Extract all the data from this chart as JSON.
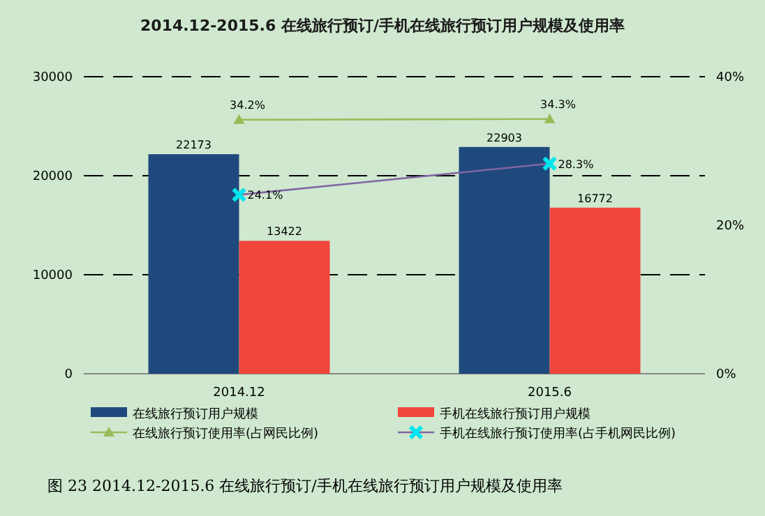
{
  "chart_data": {
    "type": "bar",
    "title": "2014.12-2015.6 在线旅行预订/手机在线旅行预订用户规模及使用率",
    "categories": [
      "2014.12",
      "2015.6"
    ],
    "series": [
      {
        "name": "在线旅行预订用户规模",
        "color": "#1f497d",
        "values": [
          22173,
          22903
        ],
        "value_labels": [
          "22173",
          "22903"
        ]
      },
      {
        "name": "手机在线旅行预订用户规模",
        "color": "#f0463c",
        "values": [
          13422,
          16772
        ],
        "value_labels": [
          "13422",
          "16772"
        ]
      },
      {
        "name": "在线旅行预订使用率(占网民比例)",
        "type": "line",
        "axis": "y2",
        "marker": "triangle",
        "color": "#9bbb59",
        "values": [
          34.2,
          34.3
        ],
        "value_labels": [
          "34.2%",
          "34.3%"
        ]
      },
      {
        "name": "手机在线旅行预订使用率(占手机网民比例)",
        "type": "line",
        "axis": "y2",
        "marker": "cross",
        "color": "#8064a2",
        "colors": [
          "#00e5ee",
          "#00e5ee"
        ],
        "values": [
          24.1,
          28.3
        ],
        "value_labels": [
          "24.1%",
          "28.3%"
        ]
      }
    ],
    "ylim": [
      0,
      30000
    ],
    "yticks": [
      0,
      10000,
      20000,
      30000
    ],
    "y2lim": [
      0,
      40
    ],
    "y2ticks": [
      {
        "value": 0,
        "label": "0%"
      },
      {
        "value": 20,
        "label": "20%"
      },
      {
        "value": 40,
        "label": "40%"
      }
    ],
    "grid": "y",
    "legend": "bottom",
    "annotations": [
      "图 23 2014.12-2015.6 在线旅行预订/手机在线旅行预订用户规模及使用率"
    ]
  }
}
